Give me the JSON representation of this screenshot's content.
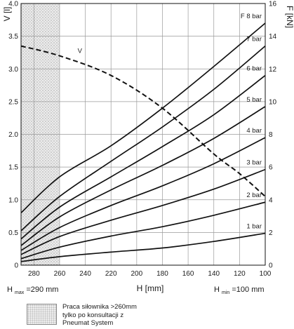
{
  "chart_data": {
    "type": "line",
    "title": "",
    "xlabel": "H [mm]",
    "ylabel_left": "V [l]",
    "ylabel_right": "F [kN]",
    "x_ticks": [
      280,
      260,
      240,
      220,
      200,
      180,
      160,
      140,
      120,
      100
    ],
    "x_range": [
      290,
      100
    ],
    "x_reversed": true,
    "y_left_ticks": [
      "0",
      "0.5",
      "1.0",
      "1.5",
      "2.0",
      "2.5",
      "3.0",
      "3.5",
      "4.0"
    ],
    "y_left_range": [
      0,
      4
    ],
    "y_right_ticks": [
      "0",
      "2",
      "4",
      "6",
      "8",
      "10",
      "12",
      "14",
      "16"
    ],
    "y_right_range": [
      0,
      16
    ],
    "grid": true,
    "h_max_label": {
      "main": "H",
      "sub": "max",
      "rest": "=290 mm"
    },
    "h_min_label": {
      "main": "H",
      "sub": "min",
      "rest": "=100 mm"
    },
    "hatched_region": {
      "x_from": 290,
      "x_to": 260
    },
    "series": [
      {
        "name": "1 bar",
        "axis": "right",
        "x": [
          290,
          260,
          220,
          180,
          140,
          100
        ],
        "values": [
          0.22,
          0.52,
          0.8,
          1.05,
          1.45,
          1.95
        ]
      },
      {
        "name": "2 bar",
        "axis": "right",
        "x": [
          290,
          260,
          220,
          180,
          140,
          100
        ],
        "values": [
          0.4,
          1.1,
          1.78,
          2.35,
          3.05,
          3.85
        ]
      },
      {
        "name": "3 bar",
        "axis": "right",
        "x": [
          290,
          260,
          220,
          180,
          140,
          100
        ],
        "values": [
          0.65,
          1.75,
          2.75,
          3.65,
          4.65,
          5.85
        ]
      },
      {
        "name": "4 bar",
        "axis": "right",
        "x": [
          290,
          260,
          220,
          180,
          140,
          100
        ],
        "values": [
          0.9,
          2.3,
          3.65,
          4.85,
          6.2,
          7.8
        ]
      },
      {
        "name": "5 bar",
        "axis": "right",
        "x": [
          290,
          260,
          220,
          180,
          140,
          100
        ],
        "values": [
          1.2,
          2.95,
          4.6,
          6.1,
          7.75,
          9.7
        ]
      },
      {
        "name": "6 bar",
        "axis": "right",
        "x": [
          290,
          260,
          220,
          180,
          140,
          100
        ],
        "values": [
          1.6,
          3.55,
          5.4,
          7.25,
          9.2,
          11.6
        ]
      },
      {
        "name": "7 bar",
        "axis": "right",
        "x": [
          290,
          260,
          220,
          180,
          140,
          100
        ],
        "values": [
          2.1,
          4.2,
          6.35,
          8.45,
          10.75,
          13.4
        ]
      },
      {
        "name": "F 8 bar",
        "axis": "right",
        "x": [
          290,
          260,
          220,
          180,
          140,
          100
        ],
        "values": [
          3.2,
          5.4,
          7.3,
          9.6,
          12.15,
          14.8
        ]
      }
    ],
    "volume_series": {
      "name": "V",
      "axis": "left",
      "style": "dashed",
      "x": [
        290,
        260,
        220,
        180,
        140,
        120,
        100
      ],
      "values": [
        3.35,
        3.2,
        2.9,
        2.4,
        1.7,
        1.4,
        1.05
      ]
    }
  },
  "legend": {
    "lines": [
      "Praca siłownika >260mm",
      "tylko po konsultacji z",
      "Pneumat System"
    ]
  }
}
